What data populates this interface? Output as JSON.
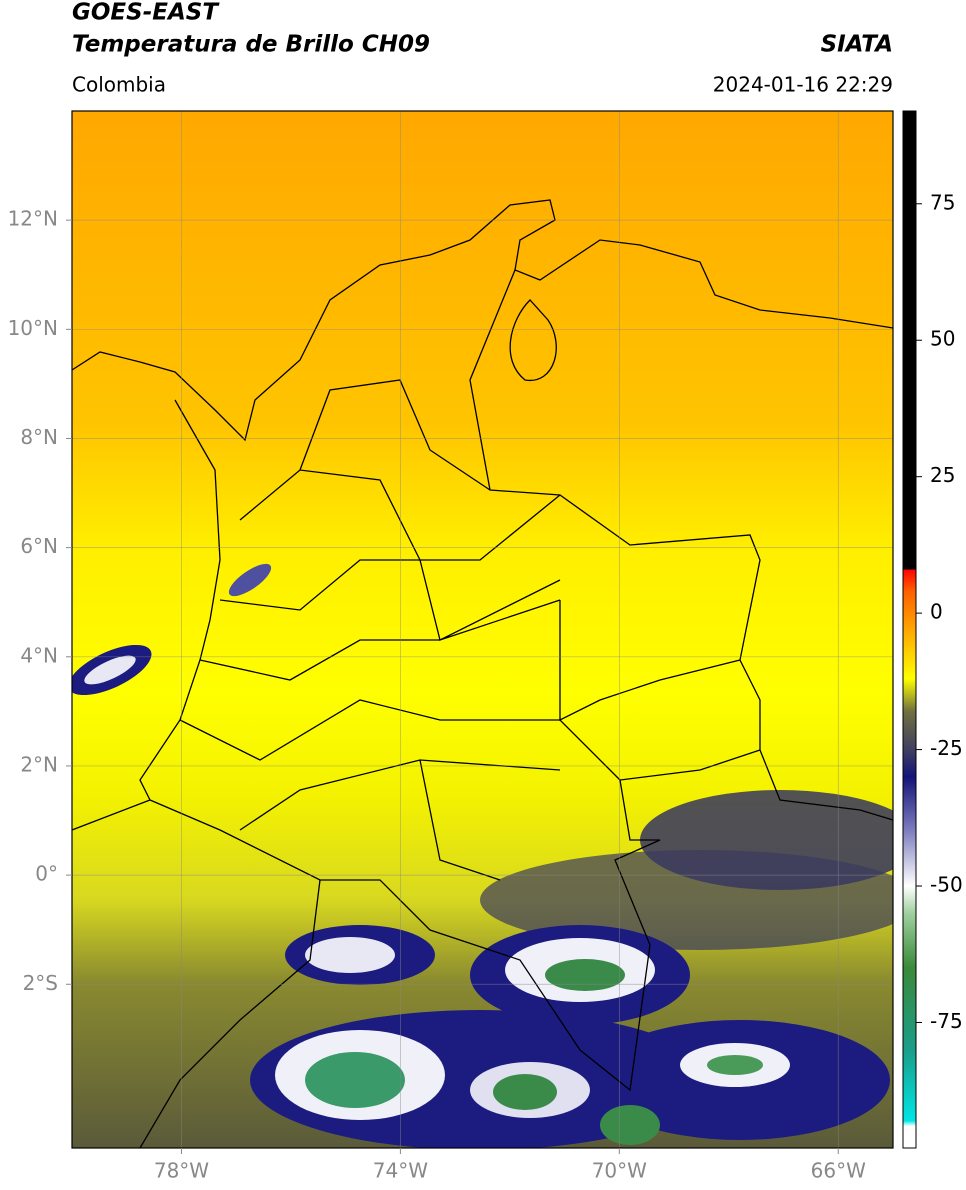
{
  "header": {
    "title": "GOES-EAST",
    "subtitle": "Temperatura de Brillo CH09",
    "region": "Colombia",
    "source": "SIATA",
    "timestamp": "2024-01-16 22:29"
  },
  "map": {
    "xlim": [
      -80,
      -65
    ],
    "ylim": [
      -5,
      14
    ],
    "grid": true,
    "xticks": [
      {
        "value": -78,
        "label": "78°W"
      },
      {
        "value": -74,
        "label": "74°W"
      },
      {
        "value": -70,
        "label": "70°W"
      },
      {
        "value": -66,
        "label": "66°W"
      }
    ],
    "yticks": [
      {
        "value": 12,
        "label": "12°N"
      },
      {
        "value": 10,
        "label": "10°N"
      },
      {
        "value": 8,
        "label": "8°N"
      },
      {
        "value": 6,
        "label": "6°N"
      },
      {
        "value": 4,
        "label": "4°N"
      },
      {
        "value": 2,
        "label": "2°N"
      },
      {
        "value": 0,
        "label": "0°"
      },
      {
        "value": -2,
        "label": "2°S"
      }
    ]
  },
  "colorbar": {
    "lim": [
      -98,
      92
    ],
    "ticks": [
      75,
      50,
      25,
      0,
      -25,
      -50,
      -75
    ],
    "stops": [
      {
        "value": -98,
        "color": "#ffffff"
      },
      {
        "value": -94,
        "color": "#ffffff"
      },
      {
        "value": -93,
        "color": "#00e5e5"
      },
      {
        "value": -80,
        "color": "#1a9e8a"
      },
      {
        "value": -65,
        "color": "#3a8a3a"
      },
      {
        "value": -55,
        "color": "#9fd09f"
      },
      {
        "value": -50,
        "color": "#ffffff"
      },
      {
        "value": -40,
        "color": "#8080c0"
      },
      {
        "value": -30,
        "color": "#14147a"
      },
      {
        "value": -25,
        "color": "#404060"
      },
      {
        "value": -18,
        "color": "#707040"
      },
      {
        "value": -12,
        "color": "#ffff00"
      },
      {
        "value": -4,
        "color": "#ffb000"
      },
      {
        "value": 4,
        "color": "#ff6000"
      },
      {
        "value": 8,
        "color": "#ff0000"
      },
      {
        "value": 8.01,
        "color": "#000000"
      },
      {
        "value": 92,
        "color": "#000000"
      }
    ]
  }
}
